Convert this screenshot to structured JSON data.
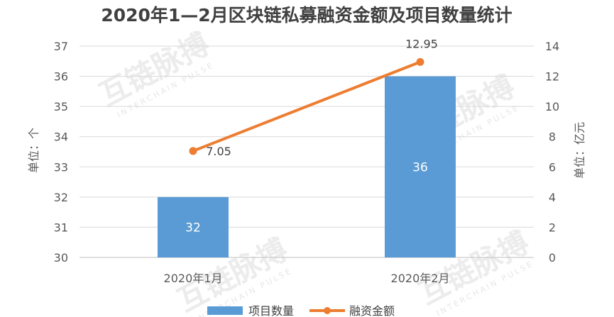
{
  "chart_data": {
    "type": "bar",
    "title": "2020年1—2月区块链私募融资金额及项目数量统计",
    "categories": [
      "2020年1月",
      "2020年2月"
    ],
    "ylabel_left": "单位：个",
    "ylabel_right": "单位：亿元",
    "ylim_left": [
      30,
      37
    ],
    "ylim_right": [
      0,
      14
    ],
    "yticks_left": [
      "30",
      "31",
      "32",
      "33",
      "34",
      "35",
      "36",
      "37"
    ],
    "yticks_right": [
      "0",
      "2",
      "4",
      "6",
      "8",
      "10",
      "12",
      "14"
    ],
    "grid": true,
    "legend_position": "bottom",
    "series": [
      {
        "name": "项目数量",
        "type": "bar",
        "axis": "left",
        "values": [
          32,
          36
        ],
        "labels": [
          "32",
          "36"
        ],
        "color": "#5b9bd5"
      },
      {
        "name": "融资金额",
        "type": "line",
        "axis": "right",
        "values": [
          7.05,
          12.95
        ],
        "labels": [
          "7.05",
          "12.95"
        ],
        "color": "#ed7d31"
      }
    ]
  },
  "watermark": {
    "text": "互链脉搏",
    "subtext": "INTERCHAIN PULSE"
  }
}
